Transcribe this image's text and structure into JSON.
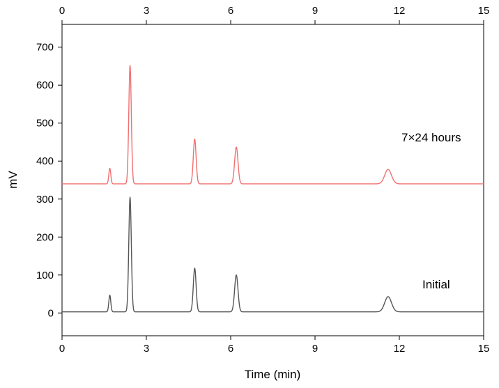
{
  "chart_data": {
    "type": "line",
    "title": "",
    "xlabel": "Time (min)",
    "ylabel": "mV",
    "xlim": [
      0,
      15
    ],
    "ylim": [
      -60,
      760
    ],
    "x_ticks": [
      0,
      3,
      6,
      9,
      12,
      15
    ],
    "x_tick_labels": [
      "0",
      "3",
      "6",
      "9",
      "12",
      "15"
    ],
    "y_ticks": [
      0,
      100,
      200,
      300,
      400,
      500,
      600,
      700
    ],
    "y_tick_labels": [
      "0",
      "100",
      "200",
      "300",
      "400",
      "500",
      "600",
      "700"
    ],
    "top_axis_mirrored": true,
    "grid": false,
    "legend": "none",
    "series": [
      {
        "name": "Initial",
        "color": "#555555",
        "baseline": 3,
        "peaks": [
          {
            "x": 1.7,
            "y": 47
          },
          {
            "x": 2.42,
            "y": 305
          },
          {
            "x": 4.72,
            "y": 118
          },
          {
            "x": 6.2,
            "y": 100
          },
          {
            "x": 11.6,
            "y": 43
          }
        ]
      },
      {
        "name": "7×24 hours",
        "color": "#f07070",
        "baseline": 340,
        "peaks": [
          {
            "x": 1.7,
            "y": 381
          },
          {
            "x": 2.42,
            "y": 652
          },
          {
            "x": 4.72,
            "y": 458
          },
          {
            "x": 6.2,
            "y": 437
          },
          {
            "x": 11.6,
            "y": 378
          }
        ]
      }
    ],
    "annotations": [
      {
        "text": "7×24 hours",
        "x": 11.5,
        "y": 400
      },
      {
        "text": "Initial",
        "x": 11.9,
        "y": 80
      }
    ]
  }
}
